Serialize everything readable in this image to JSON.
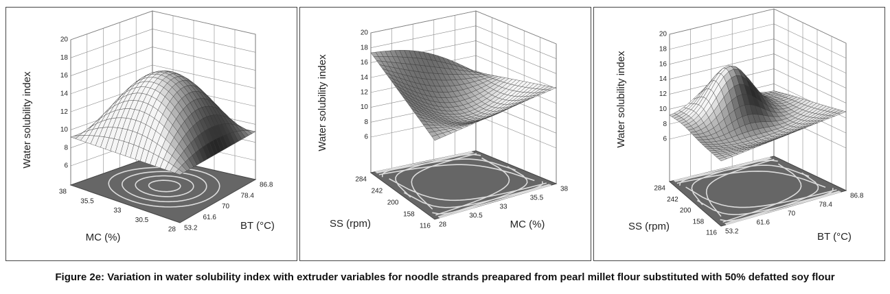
{
  "figures": [
    {
      "z_label": "Water solubility index",
      "z_ticks": [
        "20",
        "18",
        "16",
        "14",
        "12",
        "10",
        "8",
        "6"
      ],
      "left_label": "MC (%)",
      "left_ticks": [
        "38",
        "35.5",
        "33",
        "30.5",
        "28"
      ],
      "right_label": "BT (°C)",
      "right_ticks": [
        "53.2",
        "61.6",
        "70",
        "78.4",
        "86.8"
      ]
    },
    {
      "z_label": "Water solubility index",
      "z_ticks": [
        "20",
        "18",
        "16",
        "14",
        "12",
        "10",
        "8",
        "6"
      ],
      "left_label": "SS (rpm)",
      "left_ticks": [
        "284",
        "242",
        "200",
        "158",
        "116"
      ],
      "right_label": "MC (%)",
      "right_ticks": [
        "28",
        "30.5",
        "33",
        "35.5",
        "38"
      ]
    },
    {
      "z_label": "Water solubility index",
      "z_ticks": [
        "20",
        "18",
        "16",
        "14",
        "12",
        "10",
        "8",
        "6"
      ],
      "left_label": "SS (rpm)",
      "left_ticks": [
        "284",
        "242",
        "200",
        "158",
        "116"
      ],
      "right_label": "BT (°C)",
      "right_ticks": [
        "53.2",
        "61.6",
        "70",
        "78.4",
        "86.8"
      ]
    }
  ],
  "caption": "Figure 2e: Variation in water solubility index with extruder variables for noodle strands preapared from pearl millet flour substituted with 50% defatted soy flour"
}
